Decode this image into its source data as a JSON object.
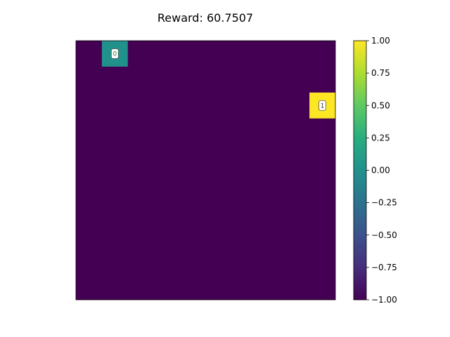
{
  "chart_data": {
    "type": "heatmap",
    "title": "Reward: 60.7507",
    "grid": {
      "rows": 10,
      "cols": 10
    },
    "background_value": -1.0,
    "cells": [
      {
        "row": 0,
        "col": 1,
        "value": 0.0,
        "label": "0"
      },
      {
        "row": 2,
        "col": 9,
        "value": 1.0,
        "label": "1"
      }
    ],
    "colorbar": {
      "colormap": "viridis",
      "vmin": -1.0,
      "vmax": 1.0,
      "ticks": [
        1.0,
        0.75,
        0.5,
        0.25,
        0.0,
        -0.25,
        -0.5,
        -0.75,
        -1.0
      ],
      "tick_labels": [
        "1.00",
        "0.75",
        "0.50",
        "0.25",
        "0.00",
        "−0.25",
        "−0.50",
        "−0.75",
        "−1.00"
      ]
    },
    "axes_visible": false
  }
}
